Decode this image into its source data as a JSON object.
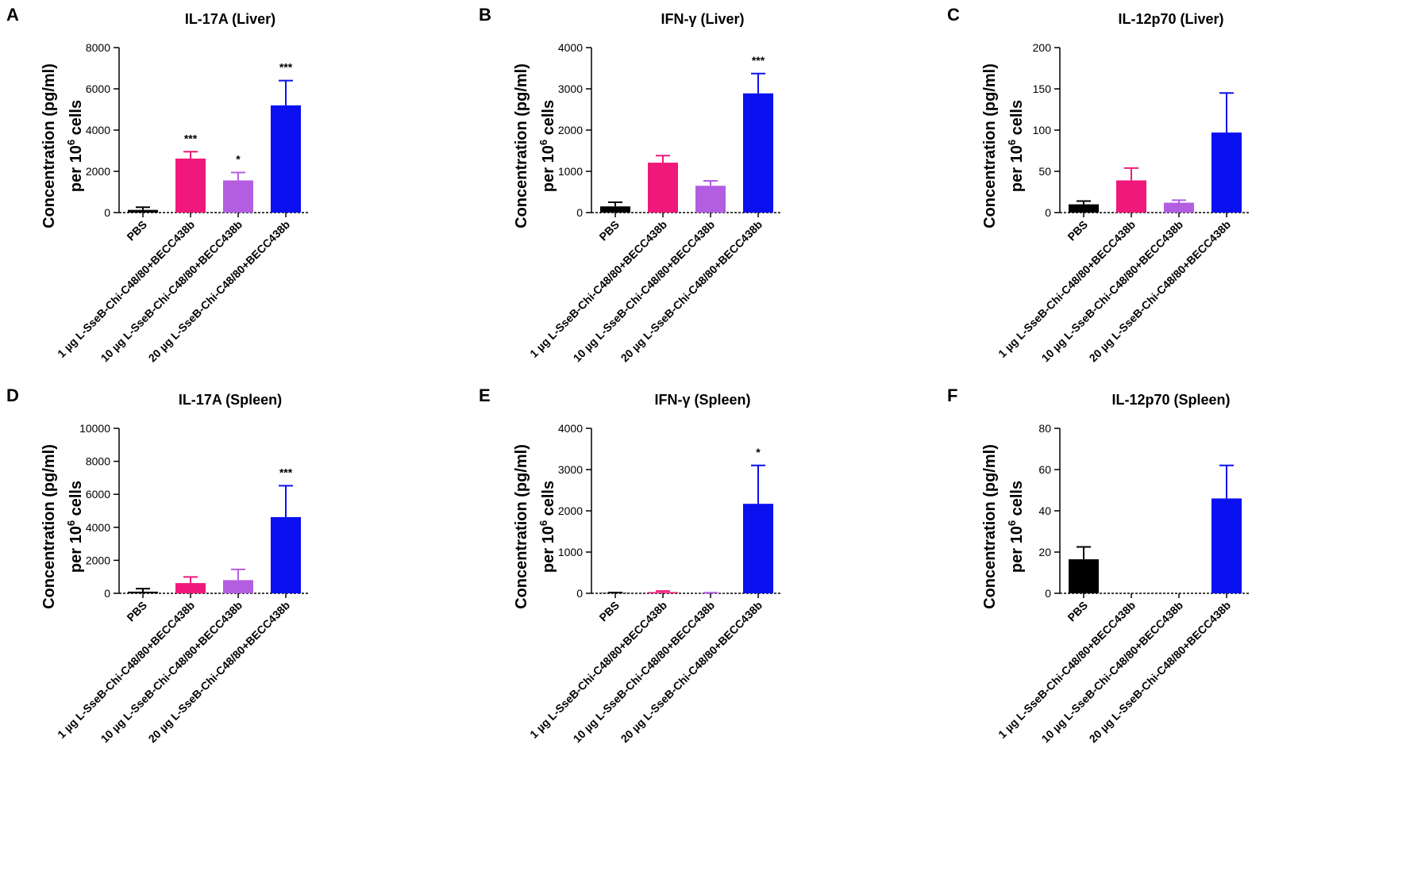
{
  "shared": {
    "ylabel_line1": "Concentration (pg/ml)",
    "ylabel_line2_prefix": "per 10",
    "ylabel_line2_sup": "6",
    "ylabel_line2_suffix": " cells",
    "colors": [
      "#000000",
      "#f0187a",
      "#b35ee0",
      "#0a10f0"
    ]
  },
  "chart_data": [
    {
      "letter": "A",
      "type": "bar",
      "title": "IL-17A (Liver)",
      "categories": [
        "PBS",
        "1 µg L-SseB-Chi-C48/80+BECC438b",
        "10 µg L-SseB-Chi-C48/80+BECC438b",
        "20 µg L-SseB-Chi-C48/80+BECC438b"
      ],
      "values": [
        130,
        2620,
        1560,
        5200
      ],
      "errors": [
        130,
        330,
        380,
        1200
      ],
      "significance": [
        "",
        "***",
        "*",
        "***"
      ],
      "ylim": [
        0,
        8000
      ],
      "yticks": [
        0,
        2000,
        4000,
        6000,
        8000
      ],
      "ylabel": "Concentration (pg/ml) per 10^6 cells"
    },
    {
      "letter": "B",
      "type": "bar",
      "title": "IFN-γ (Liver)",
      "categories": [
        "PBS",
        "1 µg L-SseB-Chi-C48/80+BECC438b",
        "10 µg L-SseB-Chi-C48/80+BECC438b",
        "20 µg L-SseB-Chi-C48/80+BECC438b"
      ],
      "values": [
        150,
        1210,
        650,
        2890
      ],
      "errors": [
        100,
        170,
        120,
        480
      ],
      "significance": [
        "",
        "",
        "",
        "***"
      ],
      "ylim": [
        0,
        4000
      ],
      "yticks": [
        0,
        1000,
        2000,
        3000,
        4000
      ],
      "ylabel": "Concentration (pg/ml) per 10^6 cells"
    },
    {
      "letter": "C",
      "type": "bar",
      "title": "IL-12p70 (Liver)",
      "categories": [
        "PBS",
        "1 µg L-SseB-Chi-C48/80+BECC438b",
        "10 µg L-SseB-Chi-C48/80+BECC438b",
        "20 µg L-SseB-Chi-C48/80+BECC438b"
      ],
      "values": [
        10,
        39,
        12,
        97
      ],
      "errors": [
        4,
        15,
        3,
        48
      ],
      "significance": [
        "",
        "",
        "",
        ""
      ],
      "ylim": [
        0,
        200
      ],
      "yticks": [
        0,
        50,
        100,
        150,
        200
      ],
      "ylabel": "Concentration (pg/ml) per 10^6 cells"
    },
    {
      "letter": "D",
      "type": "bar",
      "title": "IL-17A (Spleen)",
      "categories": [
        "PBS",
        "1 µg L-SseB-Chi-C48/80+BECC438b",
        "10 µg L-SseB-Chi-C48/80+BECC438b",
        "20 µg L-SseB-Chi-C48/80+BECC438b"
      ],
      "values": [
        100,
        620,
        800,
        4620
      ],
      "errors": [
        180,
        370,
        650,
        1900
      ],
      "significance": [
        "",
        "",
        "",
        "***"
      ],
      "ylim": [
        0,
        10000
      ],
      "yticks": [
        0,
        2000,
        4000,
        6000,
        8000,
        10000
      ],
      "ylabel": "Concentration (pg/ml) per 10^6 cells"
    },
    {
      "letter": "E",
      "type": "bar",
      "title": "IFN-γ (Spleen)",
      "categories": [
        "PBS",
        "1 µg L-SseB-Chi-C48/80+BECC438b",
        "10 µg L-SseB-Chi-C48/80+BECC438b",
        "20 µg L-SseB-Chi-C48/80+BECC438b"
      ],
      "values": [
        10,
        30,
        5,
        2170
      ],
      "errors": [
        10,
        25,
        10,
        930
      ],
      "significance": [
        "",
        "",
        "",
        "*"
      ],
      "ylim": [
        0,
        4000
      ],
      "yticks": [
        0,
        1000,
        2000,
        3000,
        4000
      ],
      "ylabel": "Concentration (pg/ml) per 10^6 cells"
    },
    {
      "letter": "F",
      "type": "bar",
      "title": "IL-12p70 (Spleen)",
      "categories": [
        "PBS",
        "1 µg L-SseB-Chi-C48/80+BECC438b",
        "10 µg L-SseB-Chi-C48/80+BECC438b",
        "20 µg L-SseB-Chi-C48/80+BECC438b"
      ],
      "values": [
        16.5,
        0,
        0,
        46
      ],
      "errors": [
        6,
        0,
        0,
        16
      ],
      "significance": [
        "",
        "",
        "",
        ""
      ],
      "ylim": [
        0,
        80
      ],
      "yticks": [
        0,
        20,
        40,
        60,
        80
      ],
      "ylabel": "Concentration (pg/ml) per 10^6 cells"
    }
  ]
}
